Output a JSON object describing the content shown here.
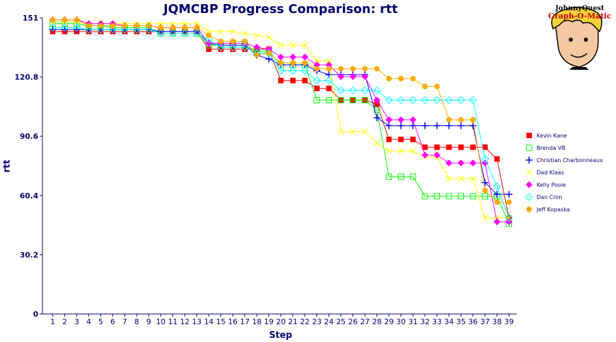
{
  "chart_data": {
    "type": "line",
    "title": "JQMCBP Progress Comparison: rtt",
    "xlabel": "Step",
    "ylabel": "rtt",
    "ylim": [
      0,
      151
    ],
    "yticks": [
      "0",
      "30.2",
      "60.4",
      "90.6",
      "120.8",
      "151"
    ],
    "x": [
      1,
      2,
      3,
      4,
      5,
      6,
      7,
      8,
      9,
      10,
      11,
      12,
      13,
      14,
      15,
      16,
      17,
      18,
      19,
      20,
      21,
      22,
      23,
      24,
      25,
      26,
      27,
      28,
      29,
      30,
      31,
      32,
      33,
      34,
      35,
      36,
      37,
      38,
      39
    ],
    "grid": false,
    "legend_position": "right",
    "series": [
      {
        "name": "Kevin Kane",
        "color": "#ff0000",
        "marker": "square-filled",
        "values": [
          144,
          144,
          144,
          144,
          144,
          144,
          144,
          144,
          144,
          144,
          144,
          144,
          144,
          135,
          135,
          135,
          135,
          135,
          135,
          119,
          119,
          119,
          115,
          115,
          109,
          109,
          109,
          107,
          89,
          89,
          89,
          85,
          85,
          85,
          85,
          85,
          85,
          79,
          49
        ]
      },
      {
        "name": "Brenda VB",
        "color": "#00ff00",
        "marker": "square-open",
        "values": [
          148,
          148,
          148,
          147,
          147,
          146,
          146,
          146,
          146,
          143,
          143,
          143,
          143,
          137,
          137,
          137,
          137,
          134,
          134,
          127,
          127,
          127,
          109,
          109,
          109,
          109,
          109,
          104,
          70,
          70,
          70,
          60,
          60,
          60,
          60,
          60,
          60,
          60,
          46
        ]
      },
      {
        "name": "Christian Charbonneaux",
        "color": "#0000ff",
        "marker": "plus",
        "values": [
          145,
          145,
          145,
          145,
          145,
          145,
          145,
          145,
          145,
          144,
          144,
          144,
          144,
          138,
          137,
          137,
          137,
          132,
          130,
          127,
          127,
          127,
          124,
          122,
          122,
          122,
          122,
          100,
          96,
          96,
          96,
          96,
          96,
          96,
          96,
          96,
          67,
          61,
          61
        ]
      },
      {
        "name": "Dad Klaas",
        "color": "#ffff00",
        "marker": "cross",
        "values": [
          149,
          149,
          149,
          148,
          148,
          148,
          148,
          148,
          148,
          148,
          148,
          148,
          148,
          144,
          144,
          144,
          143,
          142,
          141,
          137,
          137,
          137,
          129,
          129,
          93,
          93,
          93,
          87,
          83,
          83,
          83,
          80,
          80,
          69,
          69,
          69,
          49,
          49,
          49
        ]
      },
      {
        "name": "Kelly Poole",
        "color": "#ff00ff",
        "marker": "diamond",
        "values": [
          150,
          150,
          150,
          148,
          148,
          148,
          147,
          147,
          147,
          146,
          146,
          146,
          146,
          138,
          138,
          138,
          138,
          136,
          135,
          131,
          131,
          131,
          127,
          127,
          121,
          121,
          121,
          109,
          99,
          99,
          99,
          81,
          81,
          77,
          77,
          77,
          77,
          47,
          47
        ]
      },
      {
        "name": "Dan Crim",
        "color": "#00ffff",
        "marker": "diamond-open",
        "values": [
          146,
          146,
          146,
          145,
          145,
          145,
          145,
          145,
          145,
          143,
          143,
          143,
          143,
          140,
          136,
          136,
          136,
          133,
          133,
          124,
          124,
          124,
          119,
          119,
          114,
          114,
          114,
          114,
          109,
          109,
          109,
          109,
          109,
          109,
          109,
          109,
          79,
          65,
          49
        ]
      },
      {
        "name": "Jeff Kopaska",
        "color": "#ffaa00",
        "marker": "circle",
        "values": [
          150,
          150,
          150,
          147,
          147,
          147,
          147,
          147,
          147,
          146,
          146,
          146,
          146,
          142,
          139,
          139,
          139,
          132,
          133,
          128,
          128,
          128,
          125,
          125,
          125,
          125,
          125,
          125,
          120,
          120,
          120,
          116,
          116,
          99,
          99,
          99,
          63,
          57,
          57
        ]
      }
    ]
  },
  "logo": {
    "line1": "JohnnyQuest",
    "line2": "Graph-O-Matic"
  }
}
